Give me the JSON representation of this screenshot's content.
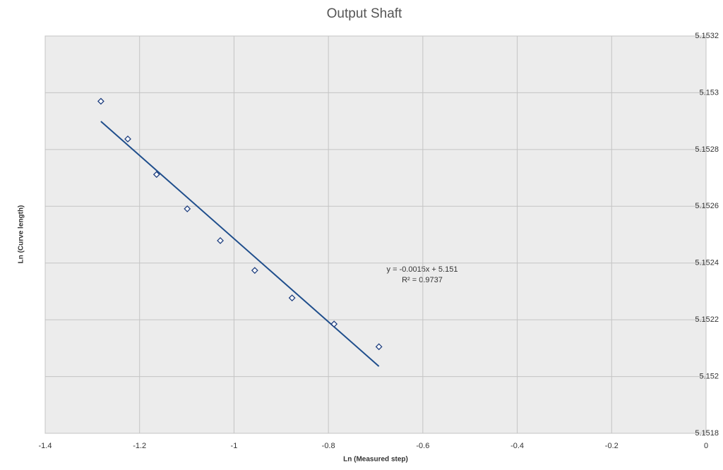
{
  "chart_data": {
    "type": "scatter",
    "title": "Output Shaft",
    "x_label": "Ln (Measured step)",
    "y_label": "Ln (Curve length)",
    "x": [
      -1.282,
      -1.225,
      -1.164,
      -1.099,
      -1.029,
      -0.956,
      -0.877,
      -0.788,
      -0.693
    ],
    "series": [
      {
        "name": "Output Shaft",
        "color": "#1f3f7f",
        "values": [
          5.15297,
          5.152837,
          5.152712,
          5.152591,
          5.152479,
          5.152374,
          5.152277,
          5.152185,
          5.152105
        ]
      }
    ],
    "trendline": {
      "color": "#1f4e8c",
      "x": [
        -1.282,
        -0.693
      ],
      "y": [
        5.152899,
        5.152036
      ]
    },
    "annotations": [
      "y = -0.0015x + 5.151",
      "R² = 0.9737"
    ],
    "xlim": [
      -1.4,
      0
    ],
    "xticks": [
      -1.4,
      -1.2,
      -1,
      -0.8,
      -0.6,
      -0.4,
      -0.2,
      0
    ],
    "ylim": [
      5.1518,
      5.1532
    ],
    "yticks": [
      5.1518,
      5.152,
      5.1522,
      5.1524,
      5.1526,
      5.1528,
      5.153,
      5.1532
    ],
    "grid": true
  }
}
